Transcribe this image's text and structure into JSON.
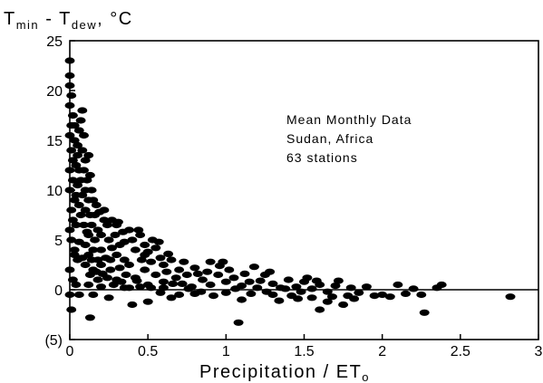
{
  "chart_data": {
    "type": "scatter",
    "title": "",
    "ylabel": {
      "main": "T",
      "sub1": "min",
      "mid": " - T",
      "sub2": "dew",
      "end": ", °C"
    },
    "xlabel": {
      "main": "Precipitation / ET",
      "sub": "o"
    },
    "xlim": [
      0,
      3
    ],
    "ylim": [
      -5,
      25
    ],
    "x_ticks": [
      {
        "value": 0,
        "label": "0"
      },
      {
        "value": 0.5,
        "label": "0.5"
      },
      {
        "value": 1,
        "label": "1"
      },
      {
        "value": 1.5,
        "label": "1.5"
      },
      {
        "value": 2,
        "label": "2"
      },
      {
        "value": 2.5,
        "label": "2.5"
      },
      {
        "value": 3,
        "label": "3"
      }
    ],
    "y_ticks": [
      {
        "value": 25,
        "label": "25"
      },
      {
        "value": 20,
        "label": "20"
      },
      {
        "value": 15,
        "label": "15"
      },
      {
        "value": 10,
        "label": "10"
      },
      {
        "value": 5,
        "label": "5"
      },
      {
        "value": 0,
        "label": "0"
      },
      {
        "value": -5,
        "label": "(5)"
      }
    ],
    "reference_line_y": 0,
    "grid": false,
    "annotation": [
      "Mean Monthly Data",
      "Sudan, Africa",
      "63 stations"
    ],
    "marker_color": "#000000",
    "points": [
      [
        0.0,
        23.0
      ],
      [
        0.0,
        21.5
      ],
      [
        0.0,
        20.5
      ],
      [
        0.01,
        19.5
      ],
      [
        0.0,
        18.5
      ],
      [
        0.02,
        17.5
      ],
      [
        0.01,
        16.5
      ],
      [
        0.0,
        15.5
      ],
      [
        0.03,
        15.0
      ],
      [
        0.01,
        14.0
      ],
      [
        0.02,
        13.0
      ],
      [
        0.0,
        12.0
      ],
      [
        0.04,
        12.5
      ],
      [
        0.02,
        11.0
      ],
      [
        0.0,
        10.0
      ],
      [
        0.05,
        10.5
      ],
      [
        0.03,
        9.0
      ],
      [
        0.01,
        8.0
      ],
      [
        0.06,
        8.5
      ],
      [
        0.02,
        7.0
      ],
      [
        0.0,
        6.0
      ],
      [
        0.04,
        6.5
      ],
      [
        0.07,
        7.5
      ],
      [
        0.01,
        5.0
      ],
      [
        0.03,
        4.0
      ],
      [
        0.05,
        3.0
      ],
      [
        0.0,
        2.0
      ],
      [
        0.02,
        1.0
      ],
      [
        0.04,
        0.5
      ],
      [
        0.0,
        -0.5
      ],
      [
        0.01,
        -2.0
      ],
      [
        0.06,
        -0.5
      ],
      [
        0.08,
        18.0
      ],
      [
        0.07,
        17.0
      ],
      [
        0.06,
        16.0
      ],
      [
        0.09,
        15.5
      ],
      [
        0.08,
        14.0
      ],
      [
        0.1,
        13.0
      ],
      [
        0.12,
        13.5
      ],
      [
        0.09,
        12.0
      ],
      [
        0.11,
        11.0
      ],
      [
        0.13,
        11.5
      ],
      [
        0.1,
        10.0
      ],
      [
        0.14,
        10.0
      ],
      [
        0.08,
        9.5
      ],
      [
        0.12,
        9.0
      ],
      [
        0.15,
        9.0
      ],
      [
        0.17,
        8.5
      ],
      [
        0.1,
        8.0
      ],
      [
        0.13,
        7.5
      ],
      [
        0.16,
        7.5
      ],
      [
        0.19,
        7.8
      ],
      [
        0.22,
        7.0
      ],
      [
        0.09,
        6.5
      ],
      [
        0.14,
        6.5
      ],
      [
        0.18,
        6.0
      ],
      [
        0.24,
        6.5
      ],
      [
        0.12,
        5.5
      ],
      [
        0.16,
        5.0
      ],
      [
        0.2,
        5.5
      ],
      [
        0.25,
        5.0
      ],
      [
        0.29,
        5.5
      ],
      [
        0.1,
        4.5
      ],
      [
        0.15,
        4.0
      ],
      [
        0.2,
        4.0
      ],
      [
        0.27,
        4.2
      ],
      [
        0.32,
        4.5
      ],
      [
        0.12,
        3.5
      ],
      [
        0.18,
        3.0
      ],
      [
        0.23,
        3.2
      ],
      [
        0.3,
        3.5
      ],
      [
        0.35,
        3.0
      ],
      [
        0.1,
        2.5
      ],
      [
        0.15,
        2.0
      ],
      [
        0.2,
        2.5
      ],
      [
        0.26,
        2.0
      ],
      [
        0.32,
        2.2
      ],
      [
        0.38,
        2.5
      ],
      [
        0.13,
        1.5
      ],
      [
        0.18,
        1.0
      ],
      [
        0.24,
        1.2
      ],
      [
        0.3,
        1.0
      ],
      [
        0.36,
        1.5
      ],
      [
        0.42,
        1.2
      ],
      [
        0.12,
        0.5
      ],
      [
        0.2,
        0.3
      ],
      [
        0.28,
        0.5
      ],
      [
        0.35,
        0.2
      ],
      [
        0.15,
        -0.5
      ],
      [
        0.13,
        -2.8
      ],
      [
        0.25,
        -0.8
      ],
      [
        0.3,
        6.5
      ],
      [
        0.34,
        5.8
      ],
      [
        0.38,
        6.0
      ],
      [
        0.4,
        5.0
      ],
      [
        0.45,
        5.5
      ],
      [
        0.48,
        4.5
      ],
      [
        0.42,
        4.0
      ],
      [
        0.5,
        3.8
      ],
      [
        0.55,
        4.2
      ],
      [
        0.58,
        3.2
      ],
      [
        0.52,
        2.8
      ],
      [
        0.46,
        3.0
      ],
      [
        0.6,
        2.5
      ],
      [
        0.65,
        3.0
      ],
      [
        0.62,
        1.8
      ],
      [
        0.55,
        1.5
      ],
      [
        0.48,
        2.0
      ],
      [
        0.7,
        2.0
      ],
      [
        0.68,
        1.2
      ],
      [
        0.75,
        1.5
      ],
      [
        0.8,
        2.2
      ],
      [
        0.6,
        0.8
      ],
      [
        0.5,
        0.5
      ],
      [
        0.45,
        0.3
      ],
      [
        0.72,
        0.6
      ],
      [
        0.78,
        0.3
      ],
      [
        0.85,
        1.0
      ],
      [
        0.9,
        0.5
      ],
      [
        0.58,
        -0.3
      ],
      [
        0.7,
        -0.5
      ],
      [
        0.4,
        -1.5
      ],
      [
        0.5,
        -1.2
      ],
      [
        0.65,
        -0.8
      ],
      [
        0.8,
        -0.4
      ],
      [
        0.95,
        1.5
      ],
      [
        1.0,
        0.8
      ],
      [
        1.05,
        1.2
      ],
      [
        1.1,
        0.4
      ],
      [
        1.0,
        -0.3
      ],
      [
        1.15,
        0.8
      ],
      [
        1.2,
        0.2
      ],
      [
        1.1,
        -1.0
      ],
      [
        1.08,
        -3.3
      ],
      [
        1.25,
        1.5
      ],
      [
        1.3,
        0.6
      ],
      [
        1.35,
        0.2
      ],
      [
        1.4,
        1.0
      ],
      [
        1.3,
        -0.5
      ],
      [
        1.45,
        0.3
      ],
      [
        1.5,
        0.8
      ],
      [
        1.42,
        -0.6
      ],
      [
        1.55,
        0.1
      ],
      [
        1.6,
        0.5
      ],
      [
        1.65,
        -0.2
      ],
      [
        1.7,
        0.4
      ],
      [
        1.55,
        -0.8
      ],
      [
        1.65,
        -1.2
      ],
      [
        1.75,
        -1.5
      ],
      [
        1.6,
        -2.0
      ],
      [
        1.8,
        0.2
      ],
      [
        1.85,
        -0.3
      ],
      [
        1.9,
        0.3
      ],
      [
        2.0,
        -0.5
      ],
      [
        2.05,
        -0.7
      ],
      [
        2.1,
        0.5
      ],
      [
        2.2,
        0.1
      ],
      [
        2.25,
        -0.5
      ],
      [
        2.27,
        -2.3
      ],
      [
        2.35,
        0.2
      ],
      [
        2.38,
        0.5
      ],
      [
        2.82,
        -0.7
      ],
      [
        0.9,
        2.8
      ],
      [
        0.96,
        2.4
      ],
      [
        1.02,
        2.0
      ],
      [
        0.98,
        2.8
      ],
      [
        0.35,
        4.8
      ],
      [
        0.22,
        8.0
      ],
      [
        0.27,
        7.0
      ],
      [
        0.31,
        6.8
      ],
      [
        0.44,
        6.0
      ],
      [
        0.48,
        3.5
      ],
      [
        0.53,
        5.0
      ],
      [
        0.57,
        4.8
      ],
      [
        0.63,
        3.6
      ],
      [
        0.73,
        2.8
      ],
      [
        0.82,
        1.6
      ],
      [
        0.88,
        1.8
      ],
      [
        1.12,
        1.6
      ],
      [
        1.18,
        2.3
      ],
      [
        1.22,
        0.9
      ],
      [
        1.28,
        1.8
      ],
      [
        1.38,
        0.1
      ],
      [
        1.48,
        -0.2
      ],
      [
        1.52,
        1.2
      ],
      [
        1.58,
        0.9
      ],
      [
        1.72,
        0.9
      ],
      [
        1.78,
        -0.6
      ],
      [
        1.95,
        -0.6
      ],
      [
        2.15,
        -0.4
      ],
      [
        0.03,
        3.5
      ],
      [
        0.06,
        4.8
      ],
      [
        0.08,
        3.2
      ],
      [
        0.11,
        5.8
      ],
      [
        0.14,
        3.0
      ],
      [
        0.17,
        1.8
      ],
      [
        0.21,
        1.6
      ],
      [
        0.26,
        3.0
      ],
      [
        0.33,
        0.8
      ],
      [
        0.38,
        0.2
      ],
      [
        0.43,
        0.9
      ],
      [
        0.52,
        0.2
      ],
      [
        0.6,
        0.2
      ],
      [
        0.66,
        0.6
      ],
      [
        0.76,
        0.1
      ],
      [
        0.84,
        -0.2
      ],
      [
        0.92,
        -0.6
      ],
      [
        1.06,
        0.1
      ],
      [
        1.16,
        -0.4
      ],
      [
        1.26,
        -0.2
      ],
      [
        1.34,
        -1.1
      ],
      [
        1.46,
        -0.9
      ],
      [
        1.68,
        -0.7
      ],
      [
        1.82,
        -0.9
      ],
      [
        0.05,
        13.5
      ],
      [
        0.07,
        11.0
      ],
      [
        0.04,
        9.5
      ],
      [
        0.06,
        12.0
      ],
      [
        0.03,
        16.5
      ],
      [
        0.05,
        14.5
      ]
    ]
  }
}
